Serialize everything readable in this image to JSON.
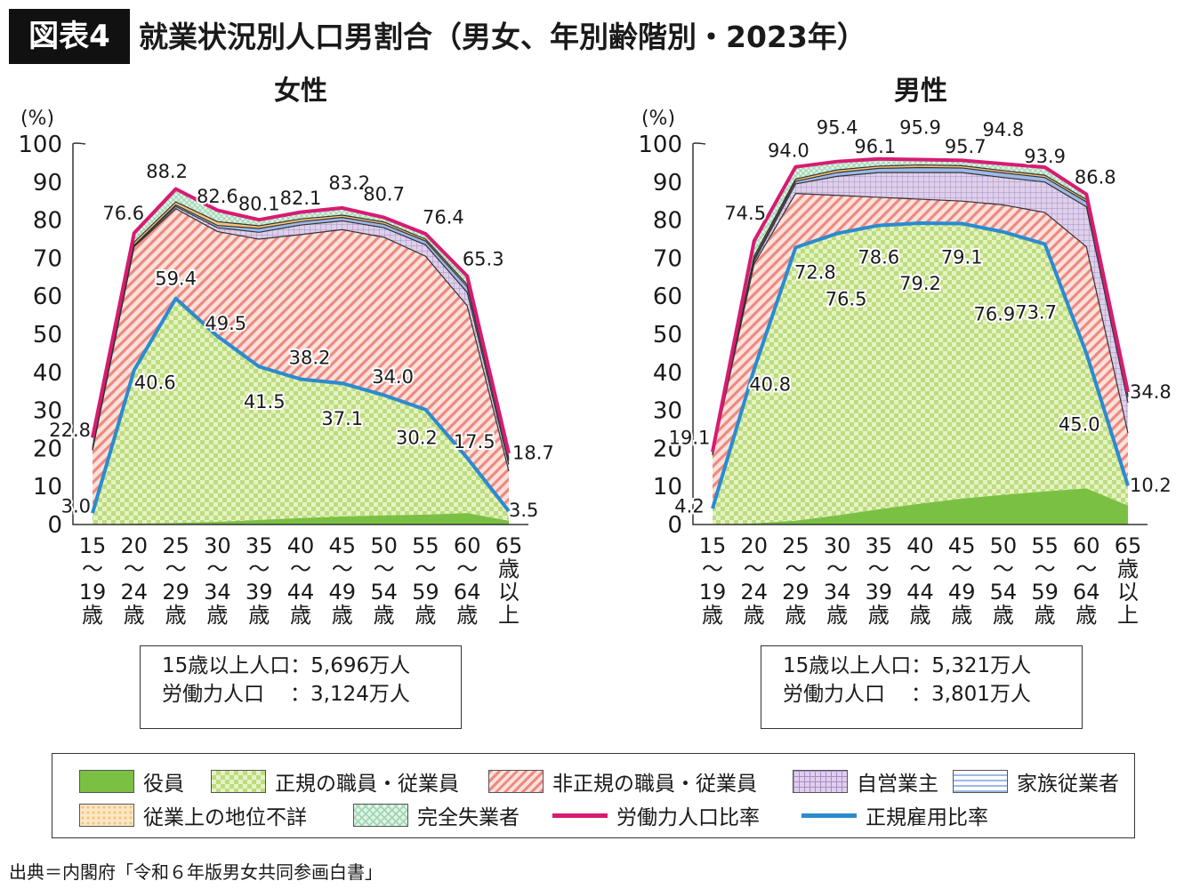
{
  "header": {
    "badge": "図表4",
    "title": "就業状況別人口男割合（男女、年別齢階別・2023年）"
  },
  "source": "出典＝内閣府「令和６年版男女共同参画白書」",
  "legend": {
    "items": [
      {
        "label": "役員",
        "kind": "fill",
        "key": "officer"
      },
      {
        "label": "正規の職員・従業員",
        "kind": "fill",
        "key": "regular"
      },
      {
        "label": "非正規の職員・従業員",
        "kind": "fill",
        "key": "nonregular"
      },
      {
        "label": "自営業主",
        "kind": "fill",
        "key": "selfemployed"
      },
      {
        "label": "家族従業者",
        "kind": "fill",
        "key": "family"
      },
      {
        "label": "従業上の地位不詳",
        "kind": "fill",
        "key": "unknown"
      },
      {
        "label": "完全失業者",
        "kind": "fill",
        "key": "unemployed"
      },
      {
        "label": "労働力人口比率",
        "kind": "line",
        "key": "lfpr"
      },
      {
        "label": "正規雇用比率",
        "kind": "line",
        "key": "regratio"
      }
    ]
  },
  "colors": {
    "officer": "#7ac143",
    "regular_bg": "#e6f2c4",
    "regular_check": "#bcdc7e",
    "nonregular_bg": "#fbe1dc",
    "nonregular_stripe": "#ec8a80",
    "selfemployed_bg": "#ded0ea",
    "selfemployed_grid": "#a98bc9",
    "family": "#9db8e8",
    "unknown": "#f6c47a",
    "unemployed": "#9fd6b4",
    "lfpr": "#d81b71",
    "regratio": "#2a8bd0"
  },
  "chart_data": [
    {
      "type": "area",
      "panel_title": "女性",
      "unit_label": "(%)",
      "ylim": [
        0,
        100
      ],
      "yticks": [
        0,
        10,
        20,
        30,
        40,
        50,
        60,
        70,
        80,
        90,
        100
      ],
      "categories": [
        [
          "15",
          "〜",
          "19",
          "歳"
        ],
        [
          "20",
          "〜",
          "24",
          "歳"
        ],
        [
          "25",
          "〜",
          "29",
          "歳"
        ],
        [
          "30",
          "〜",
          "34",
          "歳"
        ],
        [
          "35",
          "〜",
          "39",
          "歳"
        ],
        [
          "40",
          "〜",
          "44",
          "歳"
        ],
        [
          "45",
          "〜",
          "49",
          "歳"
        ],
        [
          "50",
          "〜",
          "54",
          "歳"
        ],
        [
          "55",
          "〜",
          "59",
          "歳"
        ],
        [
          "60",
          "〜",
          "64",
          "歳"
        ],
        [
          "65",
          "歳",
          "以",
          "上"
        ]
      ],
      "series": [
        {
          "name": "役員",
          "key": "officer",
          "values": [
            0,
            0.2,
            0.4,
            0.7,
            1.2,
            1.7,
            2.1,
            2.4,
            2.6,
            3.0,
            1.0
          ]
        },
        {
          "name": "正規の職員・従業員",
          "key": "regular",
          "values": [
            3.0,
            40.6,
            59.4,
            49.5,
            41.5,
            38.2,
            37.1,
            34.0,
            30.2,
            17.5,
            3.5
          ]
        },
        {
          "name": "非正規の職員・従業員",
          "key": "nonregular",
          "values": [
            19.5,
            73.0,
            83.0,
            77.0,
            75.0,
            76.2,
            77.5,
            75.5,
            70.5,
            57.5,
            14.0
          ]
        },
        {
          "name": "自営業主",
          "key": "selfemployed",
          "values": [
            19.6,
            73.2,
            83.6,
            78.0,
            76.8,
            78.7,
            79.8,
            78.0,
            73.5,
            61.0,
            15.8
          ]
        },
        {
          "name": "家族従業者",
          "key": "family",
          "values": [
            19.7,
            73.4,
            84.0,
            78.6,
            77.8,
            79.6,
            80.7,
            78.9,
            74.5,
            62.5,
            16.8
          ]
        },
        {
          "name": "従業上の地位不詳",
          "key": "unknown",
          "values": [
            20.2,
            74.2,
            84.8,
            79.6,
            78.5,
            80.3,
            81.3,
            79.5,
            75.0,
            63.1,
            17.4
          ]
        },
        {
          "name": "完全失業者",
          "key": "unemployed",
          "values": [
            22.8,
            76.6,
            88.2,
            82.6,
            80.1,
            82.1,
            83.2,
            80.7,
            76.4,
            65.3,
            18.7
          ]
        }
      ],
      "lines": [
        {
          "name": "労働力人口比率",
          "key": "lfpr",
          "values": [
            22.8,
            76.6,
            88.2,
            82.6,
            80.1,
            82.1,
            83.2,
            80.7,
            76.4,
            65.3,
            18.7
          ]
        },
        {
          "name": "正規雇用比率",
          "key": "regratio",
          "values": [
            3.0,
            40.6,
            59.4,
            49.5,
            41.5,
            38.2,
            37.1,
            34.0,
            30.2,
            17.5,
            3.5
          ]
        }
      ],
      "data_labels": [
        {
          "text": "22.8",
          "i": 0,
          "v": 25.0,
          "anchor": "end",
          "dx": -2
        },
        {
          "text": "3.0",
          "i": 0,
          "v": 5.0,
          "anchor": "end",
          "dx": -2
        },
        {
          "text": "76.6",
          "i": 1,
          "v": 82.0,
          "anchor": "middle",
          "dx": -12
        },
        {
          "text": "40.6",
          "i": 1,
          "v": 37.5,
          "anchor": "start",
          "dx": 0
        },
        {
          "text": "88.2",
          "i": 2,
          "v": 93.0,
          "anchor": "middle",
          "dx": -10
        },
        {
          "text": "59.4",
          "i": 2,
          "v": 64.8,
          "anchor": "middle",
          "dx": 0
        },
        {
          "text": "82.6",
          "i": 3,
          "v": 86.5,
          "anchor": "middle",
          "dx": 0
        },
        {
          "text": "49.5",
          "i": 3,
          "v": 53.0,
          "anchor": "start",
          "dx": -14
        },
        {
          "text": "80.1",
          "i": 4,
          "v": 84.5,
          "anchor": "middle",
          "dx": 0
        },
        {
          "text": "41.5",
          "i": 4,
          "v": 32.5,
          "anchor": "middle",
          "dx": 6
        },
        {
          "text": "82.1",
          "i": 5,
          "v": 86.0,
          "anchor": "middle",
          "dx": 0
        },
        {
          "text": "38.2",
          "i": 5,
          "v": 44.0,
          "anchor": "middle",
          "dx": 10
        },
        {
          "text": "83.2",
          "i": 6,
          "v": 90.0,
          "anchor": "middle",
          "dx": 8
        },
        {
          "text": "37.1",
          "i": 6,
          "v": 28.0,
          "anchor": "middle",
          "dx": 0
        },
        {
          "text": "80.7",
          "i": 7,
          "v": 87.0,
          "anchor": "middle",
          "dx": 0
        },
        {
          "text": "34.0",
          "i": 7,
          "v": 39.0,
          "anchor": "middle",
          "dx": 10
        },
        {
          "text": "76.4",
          "i": 8,
          "v": 81.0,
          "anchor": "middle",
          "dx": 20
        },
        {
          "text": "30.2",
          "i": 8,
          "v": 23.0,
          "anchor": "middle",
          "dx": -10
        },
        {
          "text": "65.3",
          "i": 9,
          "v": 70.0,
          "anchor": "middle",
          "dx": 18
        },
        {
          "text": "17.5",
          "i": 9,
          "v": 22.0,
          "anchor": "middle",
          "dx": 8
        },
        {
          "text": "18.7",
          "i": 10,
          "v": 19.0,
          "anchor": "start",
          "dx": 4
        },
        {
          "text": "3.5",
          "i": 10,
          "v": 4.0,
          "anchor": "start",
          "dx": 0
        }
      ],
      "info": {
        "line1_label": "15歳以上人口",
        "line1_value": "：5,696万人",
        "line2_label": "労働力人口",
        "line2_value": "：3,124万人"
      }
    },
    {
      "type": "area",
      "panel_title": "男性",
      "unit_label": "(%)",
      "ylim": [
        0,
        100
      ],
      "yticks": [
        0,
        10,
        20,
        30,
        40,
        50,
        60,
        70,
        80,
        90,
        100
      ],
      "categories": [
        [
          "15",
          "〜",
          "19",
          "歳"
        ],
        [
          "20",
          "〜",
          "24",
          "歳"
        ],
        [
          "25",
          "〜",
          "29",
          "歳"
        ],
        [
          "30",
          "〜",
          "34",
          "歳"
        ],
        [
          "35",
          "〜",
          "39",
          "歳"
        ],
        [
          "40",
          "〜",
          "44",
          "歳"
        ],
        [
          "45",
          "〜",
          "49",
          "歳"
        ],
        [
          "50",
          "〜",
          "54",
          "歳"
        ],
        [
          "55",
          "〜",
          "59",
          "歳"
        ],
        [
          "60",
          "〜",
          "64",
          "歳"
        ],
        [
          "65",
          "歳",
          "以",
          "上"
        ]
      ],
      "series": [
        {
          "name": "役員",
          "key": "officer",
          "values": [
            0,
            0.3,
            1.0,
            2.4,
            4.0,
            5.5,
            6.8,
            7.8,
            8.7,
            9.5,
            5.0
          ]
        },
        {
          "name": "正規の職員・従業員",
          "key": "regular",
          "values": [
            4.2,
            40.8,
            72.8,
            76.5,
            78.6,
            79.2,
            79.1,
            76.9,
            73.7,
            45.0,
            10.2
          ]
        },
        {
          "name": "非正規の職員・従業員",
          "key": "nonregular",
          "values": [
            18.2,
            68.5,
            87.0,
            86.5,
            86.0,
            85.5,
            85.0,
            84.0,
            82.0,
            73.0,
            24.0
          ]
        },
        {
          "name": "自営業主",
          "key": "selfemployed",
          "values": [
            18.4,
            69.2,
            89.5,
            91.5,
            92.5,
            92.5,
            92.5,
            91.2,
            90.0,
            83.5,
            32.0
          ]
        },
        {
          "name": "家族従業者",
          "key": "family",
          "values": [
            18.6,
            69.8,
            90.2,
            92.5,
            93.6,
            93.8,
            93.7,
            92.4,
            91.2,
            84.8,
            33.5
          ]
        },
        {
          "name": "従業上の地位不詳",
          "key": "unknown",
          "values": [
            18.9,
            70.5,
            90.8,
            93.2,
            94.2,
            94.5,
            94.3,
            93.0,
            91.8,
            85.4,
            34.0
          ]
        },
        {
          "name": "完全失業者",
          "key": "unemployed",
          "values": [
            19.1,
            74.5,
            94.0,
            95.4,
            96.1,
            95.9,
            95.7,
            94.8,
            93.9,
            86.8,
            34.8
          ]
        }
      ],
      "lines": [
        {
          "name": "労働力人口比率",
          "key": "lfpr",
          "values": [
            19.1,
            74.5,
            94.0,
            95.4,
            96.1,
            95.9,
            95.7,
            94.8,
            93.9,
            86.8,
            34.8
          ]
        },
        {
          "name": "正規雇用比率",
          "key": "regratio",
          "values": [
            4.2,
            40.8,
            72.8,
            76.5,
            78.6,
            79.2,
            79.1,
            76.9,
            73.7,
            45.0,
            10.2
          ]
        }
      ],
      "data_labels": [
        {
          "text": "19.1",
          "i": 0,
          "v": 23.0,
          "anchor": "middle",
          "dx": -26
        },
        {
          "text": "4.2",
          "i": 0,
          "v": 5.0,
          "anchor": "middle",
          "dx": -26
        },
        {
          "text": "74.5",
          "i": 1,
          "v": 82.0,
          "anchor": "middle",
          "dx": -10
        },
        {
          "text": "40.8",
          "i": 1,
          "v": 37.0,
          "anchor": "middle",
          "dx": 18
        },
        {
          "text": "94.0",
          "i": 2,
          "v": 98.5,
          "anchor": "middle",
          "dx": -8
        },
        {
          "text": "72.8",
          "i": 2,
          "v": 66.5,
          "anchor": "middle",
          "dx": 22
        },
        {
          "text": "95.4",
          "i": 3,
          "v": 104.5,
          "anchor": "middle",
          "dx": 0
        },
        {
          "text": "76.5",
          "i": 3,
          "v": 59.5,
          "anchor": "middle",
          "dx": 10
        },
        {
          "text": "96.1",
          "i": 4,
          "v": 99.5,
          "anchor": "middle",
          "dx": -4
        },
        {
          "text": "78.6",
          "i": 4,
          "v": 70.5,
          "anchor": "middle",
          "dx": 0
        },
        {
          "text": "95.9",
          "i": 5,
          "v": 104.5,
          "anchor": "middle",
          "dx": 0
        },
        {
          "text": "79.2",
          "i": 5,
          "v": 63.5,
          "anchor": "middle",
          "dx": 0
        },
        {
          "text": "95.7",
          "i": 6,
          "v": 99.5,
          "anchor": "middle",
          "dx": 4
        },
        {
          "text": "79.1",
          "i": 6,
          "v": 70.5,
          "anchor": "middle",
          "dx": 0
        },
        {
          "text": "94.8",
          "i": 7,
          "v": 104.0,
          "anchor": "middle",
          "dx": 0
        },
        {
          "text": "76.9",
          "i": 7,
          "v": 55.5,
          "anchor": "middle",
          "dx": -10
        },
        {
          "text": "93.9",
          "i": 8,
          "v": 97.0,
          "anchor": "middle",
          "dx": 0
        },
        {
          "text": "73.7",
          "i": 8,
          "v": 56.0,
          "anchor": "middle",
          "dx": -10
        },
        {
          "text": "86.8",
          "i": 9,
          "v": 91.5,
          "anchor": "middle",
          "dx": 10
        },
        {
          "text": "45.0",
          "i": 9,
          "v": 26.5,
          "anchor": "middle",
          "dx": -8
        },
        {
          "text": "34.8",
          "i": 10,
          "v": 35.0,
          "anchor": "start",
          "dx": 2
        },
        {
          "text": "10.2",
          "i": 10,
          "v": 10.5,
          "anchor": "start",
          "dx": 2
        }
      ],
      "info": {
        "line1_label": "15歳以上人口",
        "line1_value": "：5,321万人",
        "line2_label": "労働力人口",
        "line2_value": "：3,801万人"
      }
    }
  ]
}
